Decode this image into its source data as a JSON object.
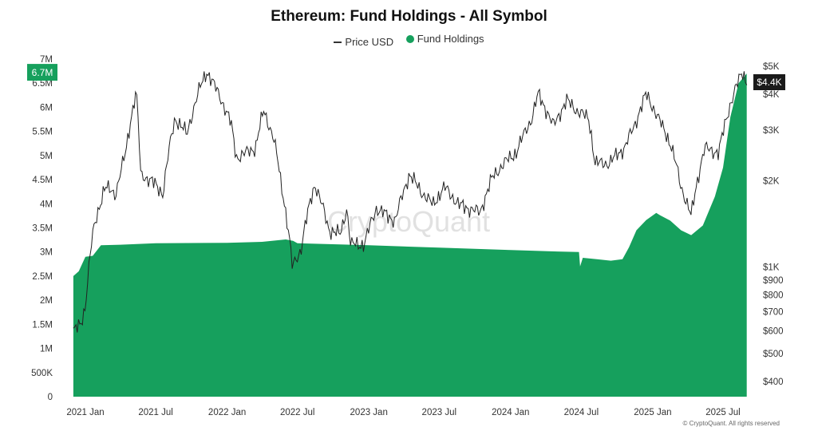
{
  "chart_data": {
    "type": "area",
    "title": "Ethereum: Fund Holdings - All Symbol",
    "legend": [
      {
        "name": "Price USD",
        "kind": "line",
        "color": "#222222"
      },
      {
        "name": "Fund Holdings",
        "kind": "area",
        "color": "#16a05d"
      }
    ],
    "legend_position": "top-center",
    "x_ticks": [
      "2021 Jan",
      "2021 Jul",
      "2022 Jan",
      "2022 Jul",
      "2023 Jan",
      "2023 Jul",
      "2024 Jan",
      "2024 Jul",
      "2025 Jan",
      "2025 Jul"
    ],
    "y_left": {
      "ticks": [
        "0",
        "500K",
        "1M",
        "1.5M",
        "2M",
        "2.5M",
        "3M",
        "3.5M",
        "4M",
        "4.5M",
        "5M",
        "5.5M",
        "6M",
        "6.5M",
        "7M"
      ],
      "range": [
        0,
        7000000
      ]
    },
    "y_right": {
      "scale": "log",
      "ticks": [
        "$400",
        "$500",
        "$600",
        "$700",
        "$800",
        "$900",
        "$1K",
        "$2K",
        "$3K",
        "$4K",
        "$5K"
      ],
      "tick_values": [
        400,
        500,
        600,
        700,
        800,
        900,
        1000,
        2000,
        3000,
        4000,
        5000
      ]
    },
    "badges": {
      "left": "6.7M",
      "right": "$4.4K"
    },
    "watermark": "CryptoQuant",
    "copyright": "© CryptoQuant. All rights reserved",
    "series": [
      {
        "name": "Fund Holdings",
        "axis": "left",
        "points": [
          [
            "2020-12-01",
            2500000
          ],
          [
            "2020-12-15",
            2600000
          ],
          [
            "2021-01-01",
            2900000
          ],
          [
            "2021-01-20",
            2920000
          ],
          [
            "2021-02-10",
            3140000
          ],
          [
            "2021-04-01",
            3150000
          ],
          [
            "2021-07-01",
            3180000
          ],
          [
            "2022-01-01",
            3190000
          ],
          [
            "2022-04-01",
            3210000
          ],
          [
            "2022-06-01",
            3260000
          ],
          [
            "2022-06-20",
            3230000
          ],
          [
            "2022-07-01",
            3180000
          ],
          [
            "2023-01-01",
            3140000
          ],
          [
            "2023-07-01",
            3090000
          ],
          [
            "2024-01-01",
            3040000
          ],
          [
            "2024-05-01",
            3010000
          ],
          [
            "2024-06-25",
            3000000
          ],
          [
            "2024-06-28",
            2700000
          ],
          [
            "2024-07-05",
            2880000
          ],
          [
            "2024-08-10",
            2850000
          ],
          [
            "2024-09-15",
            2820000
          ],
          [
            "2024-10-15",
            2850000
          ],
          [
            "2024-11-01",
            3100000
          ],
          [
            "2024-11-20",
            3450000
          ],
          [
            "2024-12-15",
            3660000
          ],
          [
            "2025-01-10",
            3810000
          ],
          [
            "2025-01-20",
            3760000
          ],
          [
            "2025-02-15",
            3650000
          ],
          [
            "2025-03-15",
            3450000
          ],
          [
            "2025-04-10",
            3350000
          ],
          [
            "2025-05-10",
            3550000
          ],
          [
            "2025-06-10",
            4150000
          ],
          [
            "2025-07-01",
            4750000
          ],
          [
            "2025-07-20",
            5800000
          ],
          [
            "2025-08-10",
            6500000
          ],
          [
            "2025-08-31",
            6700000
          ]
        ]
      },
      {
        "name": "Price USD",
        "axis": "right",
        "points": [
          [
            "2020-12-01",
            600
          ],
          [
            "2020-12-20",
            630
          ],
          [
            "2021-01-01",
            730
          ],
          [
            "2021-01-20",
            1300
          ],
          [
            "2021-02-20",
            1900
          ],
          [
            "2021-03-20",
            1800
          ],
          [
            "2021-04-15",
            2500
          ],
          [
            "2021-05-12",
            4100
          ],
          [
            "2021-05-23",
            2100
          ],
          [
            "2021-06-20",
            2000
          ],
          [
            "2021-07-20",
            1800
          ],
          [
            "2021-08-20",
            3300
          ],
          [
            "2021-09-20",
            2900
          ],
          [
            "2021-10-20",
            4100
          ],
          [
            "2021-11-10",
            4800
          ],
          [
            "2021-12-10",
            4000
          ],
          [
            "2022-01-10",
            3200
          ],
          [
            "2022-01-25",
            2400
          ],
          [
            "2022-03-15",
            2600
          ],
          [
            "2022-04-05",
            3500
          ],
          [
            "2022-05-01",
            2800
          ],
          [
            "2022-05-20",
            1950
          ],
          [
            "2022-06-18",
            1000
          ],
          [
            "2022-07-10",
            1150
          ],
          [
            "2022-08-15",
            1950
          ],
          [
            "2022-09-20",
            1350
          ],
          [
            "2022-10-20",
            1300
          ],
          [
            "2022-11-05",
            1600
          ],
          [
            "2022-11-15",
            1200
          ],
          [
            "2022-12-20",
            1200
          ],
          [
            "2023-01-20",
            1600
          ],
          [
            "2023-03-10",
            1450
          ],
          [
            "2023-04-15",
            2100
          ],
          [
            "2023-05-20",
            1800
          ],
          [
            "2023-06-15",
            1650
          ],
          [
            "2023-07-15",
            1900
          ],
          [
            "2023-08-20",
            1650
          ],
          [
            "2023-10-15",
            1550
          ],
          [
            "2023-11-15",
            2050
          ],
          [
            "2023-12-15",
            2300
          ],
          [
            "2024-01-15",
            2500
          ],
          [
            "2024-02-25",
            3300
          ],
          [
            "2024-03-12",
            4000
          ],
          [
            "2024-04-20",
            3100
          ],
          [
            "2024-05-25",
            3800
          ],
          [
            "2024-06-20",
            3500
          ],
          [
            "2024-07-20",
            3300
          ],
          [
            "2024-08-05",
            2300
          ],
          [
            "2024-09-10",
            2300
          ],
          [
            "2024-10-20",
            2600
          ],
          [
            "2024-11-15",
            3100
          ],
          [
            "2024-12-15",
            4000
          ],
          [
            "2025-01-15",
            3300
          ],
          [
            "2025-02-15",
            2700
          ],
          [
            "2025-03-15",
            1900
          ],
          [
            "2025-04-10",
            1500
          ],
          [
            "2025-05-15",
            2600
          ],
          [
            "2025-06-20",
            2500
          ],
          [
            "2025-07-20",
            3700
          ],
          [
            "2025-08-20",
            4800
          ],
          [
            "2025-08-31",
            4400
          ]
        ]
      }
    ]
  }
}
